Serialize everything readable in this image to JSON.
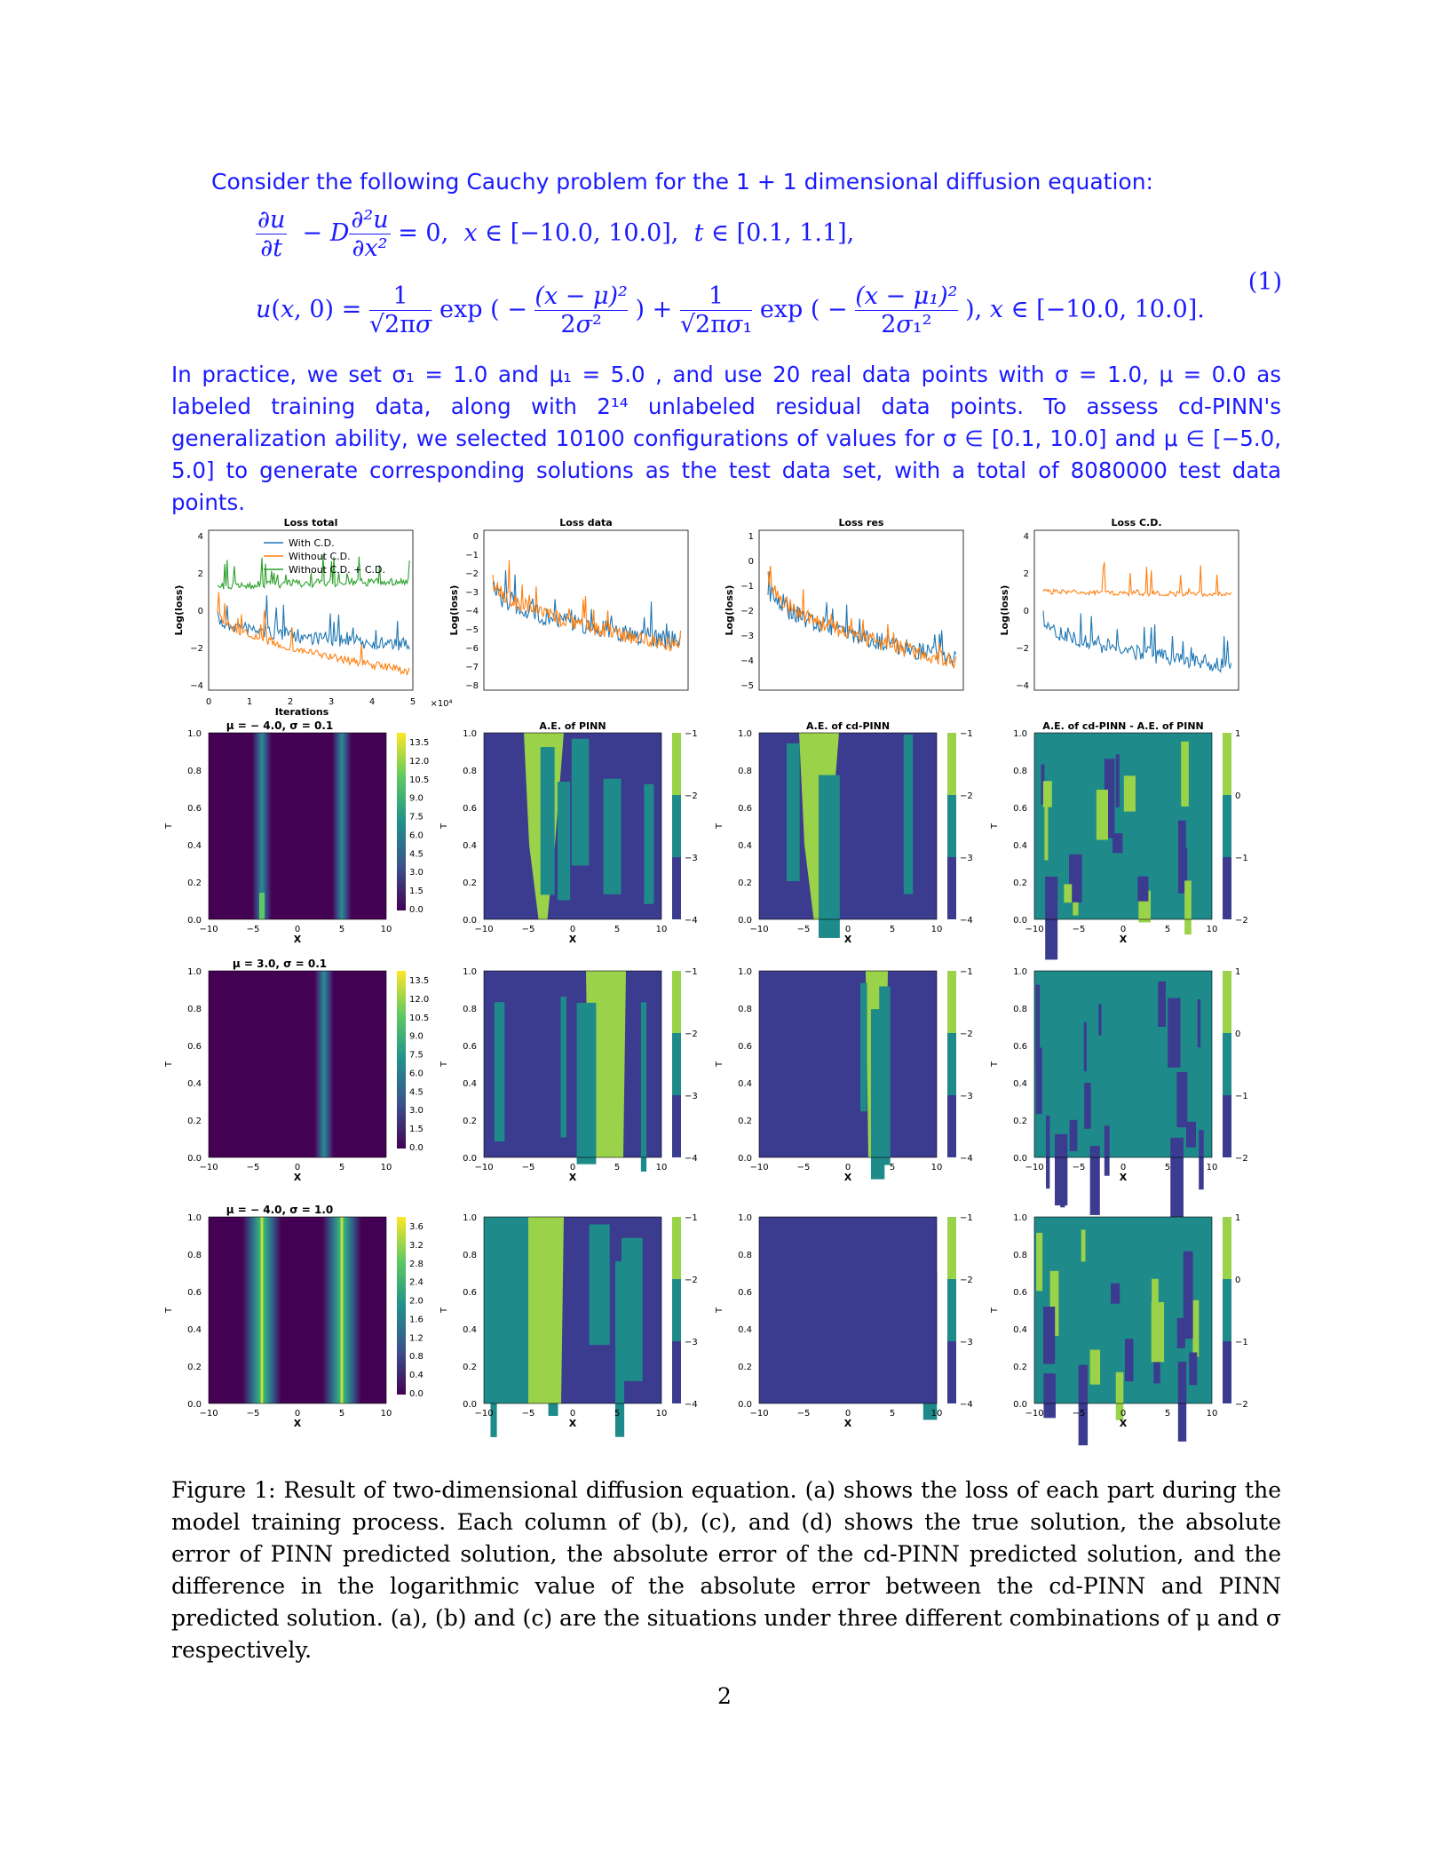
{
  "intro": "Consider the following Cauchy problem for the 1 + 1 dimensional diffusion equation:",
  "equation": {
    "line1_lhs": "∂u/∂t − D ∂²u/∂x²",
    "line1_rhs": "= 0,  x ∈ [−10.0, 10.0],  t ∈ [0.1, 1.1],",
    "line2": "u(x, 0) = (1/(√(2π)σ)) exp(−(x − μ)²/(2σ²)) + (1/(√(2π)σ₁)) exp(−(x − μ₁)²/(2σ₁²)),  x ∈ [−10.0, 10.0].",
    "number": "(1)"
  },
  "paragraph": "In practice, we set σ₁ = 1.0 and μ₁ = 5.0 , and use 20 real data points with σ = 1.0, μ = 0.0 as labeled training data, along with 2¹⁴ unlabeled residual data points. To assess cd-PINN's generalization ability, we selected 10100 configurations of values for σ ∈ [0.1, 10.0] and μ ∈ [−5.0, 5.0] to generate corresponding solutions as the test data set, with a total of 8080000 test data points.",
  "figure": {
    "loss_titles": [
      "Loss total",
      "Loss data",
      "Loss res",
      "Loss C.D."
    ],
    "loss_ylabel": "Log(loss)",
    "loss_xlabel": "Iterations",
    "loss_xscale": "×10⁴",
    "legend": [
      "With C.D.",
      "Without C.D.",
      "Without C.D. + C.D."
    ],
    "colors": {
      "blue": "#1f77b4",
      "orange": "#ff7f0e",
      "green": "#2ca02c"
    },
    "row_titles": [
      "μ = − 4.0, σ = 0.1",
      "μ = 3.0, σ = 0.1",
      "μ = − 4.0, σ = 1.0"
    ],
    "col_titles": [
      "A.E. of PINN",
      "A.E. of cd-PINN",
      "A.E. of cd-PINN - A.E. of PINN"
    ],
    "axis_x": "X",
    "axis_t": "T",
    "cbar_true_rows_1_2": [
      "13.5",
      "12.0",
      "10.5",
      "9.0",
      "7.5",
      "6.0",
      "4.5",
      "3.0",
      "1.5",
      "0.0"
    ],
    "cbar_true_row_3": [
      "3.6",
      "3.2",
      "2.8",
      "2.4",
      "2.0",
      "1.6",
      "1.2",
      "0.8",
      "0.4",
      "0.0"
    ],
    "cbar_ae": [
      "−1",
      "−2",
      "−3",
      "−4"
    ],
    "cbar_diff": [
      "1",
      "0",
      "−1",
      "−2"
    ]
  },
  "caption": "Figure 1: Result of two-dimensional diffusion equation. (a) shows the loss of each part during the model training process. Each column of (b), (c), and (d) shows the true solution, the absolute error of PINN predicted solution, the absolute error of the cd-PINN predicted solution, and the difference in the logarithmic value of the absolute error between the cd-PINN and PINN predicted solution. (a), (b) and (c) are the situations under three different combinations of μ and σ respectively.",
  "page_number": "2"
}
